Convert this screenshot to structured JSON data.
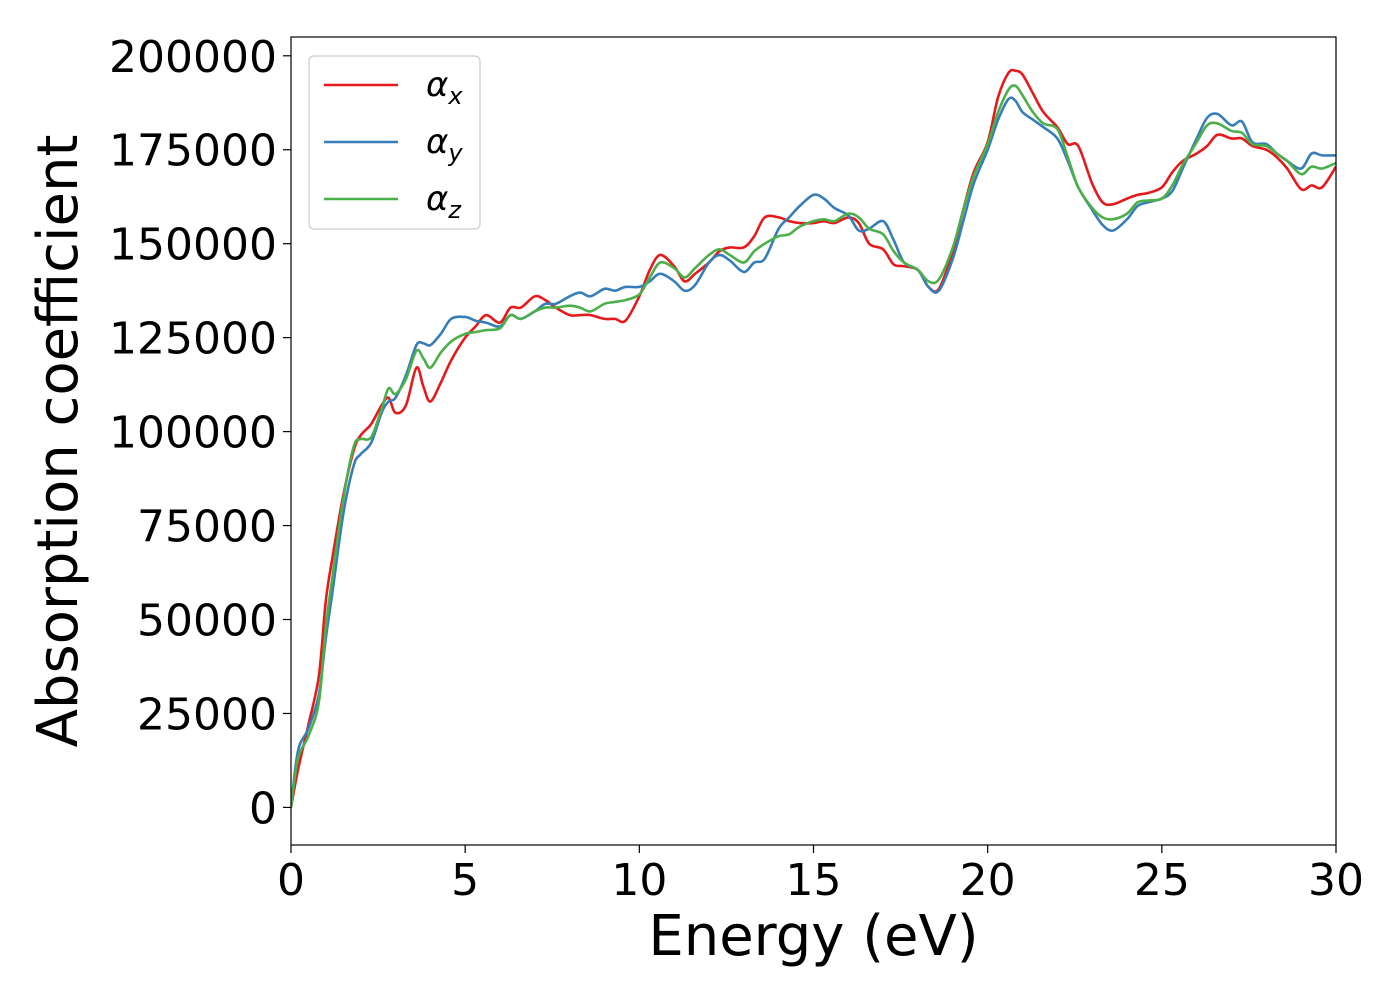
{
  "chart_data": {
    "type": "line",
    "xlabel": "Energy (eV)",
    "ylabel": "Absorption coefficient",
    "xlim": [
      0,
      30
    ],
    "ylim": [
      -10000,
      205000
    ],
    "xticks": [
      0,
      5,
      10,
      15,
      20,
      25,
      30
    ],
    "xtick_labels": [
      "0",
      "5",
      "10",
      "15",
      "20",
      "25",
      "30"
    ],
    "yticks": [
      0,
      25000,
      50000,
      75000,
      100000,
      125000,
      150000,
      175000,
      200000
    ],
    "ytick_labels": [
      "0",
      "25000",
      "50000",
      "75000",
      "100000",
      "125000",
      "150000",
      "175000",
      "200000"
    ],
    "grid": false,
    "legend_position": "top-left",
    "series": [
      {
        "name": "α_x",
        "label_main": "α",
        "label_sub": "x",
        "color": "#e41a1c",
        "x": [
          0,
          0.2,
          0.5,
          0.8,
          1.0,
          1.2,
          1.5,
          1.8,
          2.0,
          2.3,
          2.6,
          2.8,
          3.0,
          3.3,
          3.6,
          3.8,
          4.0,
          4.3,
          4.6,
          5.0,
          5.3,
          5.6,
          6.0,
          6.3,
          6.6,
          7.0,
          7.3,
          7.6,
          8.0,
          8.3,
          8.6,
          9.0,
          9.3,
          9.6,
          10.0,
          10.3,
          10.6,
          11.0,
          11.3,
          11.6,
          12.0,
          12.3,
          12.6,
          13.0,
          13.3,
          13.6,
          14.0,
          14.3,
          14.6,
          15.0,
          15.3,
          15.6,
          16.0,
          16.3,
          16.6,
          17.0,
          17.3,
          17.6,
          18.0,
          18.3,
          18.6,
          19.0,
          19.3,
          19.6,
          20.0,
          20.3,
          20.6,
          20.8,
          21.0,
          21.3,
          21.6,
          22.0,
          22.3,
          22.6,
          23.0,
          23.3,
          23.6,
          24.0,
          24.3,
          24.6,
          25.0,
          25.3,
          25.6,
          26.0,
          26.3,
          26.6,
          27.0,
          27.3,
          27.6,
          28.0,
          28.3,
          28.6,
          29.0,
          29.3,
          29.6,
          30.0
        ],
        "y": [
          0,
          10000,
          22000,
          35000,
          55000,
          67000,
          83000,
          95000,
          99000,
          102000,
          107000,
          109000,
          105000,
          107000,
          117000,
          112000,
          108000,
          113000,
          119000,
          125000,
          128000,
          131000,
          129000,
          133000,
          133000,
          136000,
          135000,
          133000,
          131000,
          131000,
          131000,
          130000,
          130000,
          129500,
          136000,
          143000,
          147000,
          144000,
          140000,
          142000,
          145000,
          148000,
          149000,
          149000,
          152000,
          157000,
          157000,
          156000,
          155500,
          155500,
          156000,
          155500,
          157000,
          155500,
          150000,
          148500,
          144500,
          144000,
          143000,
          138500,
          138000,
          148000,
          159000,
          169000,
          177000,
          189000,
          195500,
          196000,
          195000,
          190000,
          185000,
          181000,
          176500,
          176000,
          166000,
          161000,
          160500,
          162000,
          163000,
          163500,
          165000,
          169000,
          172000,
          174000,
          176000,
          179000,
          178000,
          178000,
          176000,
          175000,
          173000,
          170000,
          164500,
          165500,
          165000,
          170500
        ]
      },
      {
        "name": "α_y",
        "label_main": "α",
        "label_sub": "y",
        "color": "#377eb8",
        "x": [
          0,
          0.2,
          0.5,
          0.8,
          1.0,
          1.2,
          1.5,
          1.8,
          2.0,
          2.3,
          2.6,
          2.8,
          3.0,
          3.3,
          3.6,
          3.8,
          4.0,
          4.3,
          4.6,
          5.0,
          5.3,
          5.6,
          6.0,
          6.3,
          6.6,
          7.0,
          7.3,
          7.6,
          8.0,
          8.3,
          8.6,
          9.0,
          9.3,
          9.6,
          10.0,
          10.3,
          10.6,
          11.0,
          11.3,
          11.6,
          12.0,
          12.3,
          12.6,
          13.0,
          13.3,
          13.6,
          14.0,
          14.3,
          14.6,
          15.0,
          15.3,
          15.6,
          16.0,
          16.3,
          16.6,
          17.0,
          17.3,
          17.6,
          18.0,
          18.3,
          18.6,
          19.0,
          19.3,
          19.6,
          20.0,
          20.3,
          20.6,
          20.8,
          21.0,
          21.3,
          21.6,
          22.0,
          22.3,
          22.6,
          23.0,
          23.3,
          23.6,
          24.0,
          24.3,
          24.6,
          25.0,
          25.3,
          25.6,
          26.0,
          26.3,
          26.6,
          27.0,
          27.3,
          27.6,
          28.0,
          28.3,
          28.6,
          29.0,
          29.3,
          29.6,
          30.0
        ],
        "y": [
          0,
          15000,
          21000,
          30000,
          45000,
          58000,
          78000,
          91000,
          94000,
          97000,
          105000,
          108000,
          109000,
          115000,
          123000,
          123500,
          123000,
          126000,
          130000,
          130500,
          129500,
          129000,
          128000,
          131000,
          130000,
          132000,
          134000,
          134000,
          136000,
          137000,
          136000,
          138000,
          137500,
          138500,
          138500,
          140000,
          142000,
          140000,
          137500,
          139000,
          145000,
          147000,
          145500,
          142500,
          145000,
          146000,
          154000,
          157000,
          160000,
          163000,
          162000,
          159500,
          157500,
          153500,
          154000,
          156000,
          151000,
          145000,
          143000,
          138500,
          137500,
          146000,
          156000,
          166000,
          175000,
          183000,
          188500,
          188000,
          185000,
          183000,
          181000,
          178000,
          172000,
          165000,
          159000,
          155000,
          153500,
          156500,
          160000,
          161000,
          162000,
          164000,
          170000,
          178000,
          183500,
          184500,
          181500,
          182500,
          177000,
          176500,
          174000,
          172000,
          170000,
          174000,
          173500,
          173500
        ]
      },
      {
        "name": "α_z",
        "label_main": "α",
        "label_sub": "z",
        "color": "#4daf4a",
        "x": [
          0,
          0.2,
          0.5,
          0.8,
          1.0,
          1.2,
          1.5,
          1.8,
          2.0,
          2.3,
          2.6,
          2.8,
          3.0,
          3.3,
          3.6,
          3.8,
          4.0,
          4.3,
          4.6,
          5.0,
          5.3,
          5.6,
          6.0,
          6.3,
          6.6,
          7.0,
          7.3,
          7.6,
          8.0,
          8.3,
          8.6,
          9.0,
          9.3,
          9.6,
          10.0,
          10.3,
          10.6,
          11.0,
          11.3,
          11.6,
          12.0,
          12.3,
          12.6,
          13.0,
          13.3,
          13.6,
          14.0,
          14.3,
          14.6,
          15.0,
          15.3,
          15.6,
          16.0,
          16.3,
          16.6,
          17.0,
          17.3,
          17.6,
          18.0,
          18.3,
          18.6,
          19.0,
          19.3,
          19.6,
          20.0,
          20.3,
          20.6,
          20.8,
          21.0,
          21.3,
          21.6,
          22.0,
          22.3,
          22.6,
          23.0,
          23.3,
          23.6,
          24.0,
          24.3,
          24.6,
          25.0,
          25.3,
          25.6,
          26.0,
          26.3,
          26.6,
          27.0,
          27.3,
          27.6,
          28.0,
          28.3,
          28.6,
          29.0,
          29.3,
          29.6,
          30.0
        ],
        "y": [
          0,
          13000,
          19000,
          28000,
          48000,
          62000,
          82000,
          96000,
          98000,
          98500,
          106000,
          111500,
          110000,
          114000,
          121500,
          119500,
          117000,
          121000,
          124000,
          126000,
          126500,
          127000,
          127500,
          131000,
          130000,
          132000,
          133000,
          133000,
          133500,
          133000,
          132000,
          134000,
          134500,
          135000,
          136500,
          141000,
          145000,
          143500,
          141000,
          143500,
          147000,
          148500,
          147000,
          145000,
          148000,
          150000,
          152000,
          152500,
          154500,
          156000,
          156500,
          156000,
          158000,
          157000,
          154000,
          152500,
          148000,
          145000,
          143000,
          140000,
          140500,
          149000,
          159000,
          168000,
          176500,
          185000,
          191000,
          192000,
          189500,
          185000,
          182000,
          180500,
          173000,
          165000,
          159500,
          157000,
          156500,
          158000,
          161000,
          161500,
          162000,
          165500,
          171000,
          177000,
          181500,
          182000,
          180000,
          179500,
          176500,
          176000,
          174000,
          172000,
          168500,
          170500,
          170000,
          171500
        ]
      }
    ]
  }
}
